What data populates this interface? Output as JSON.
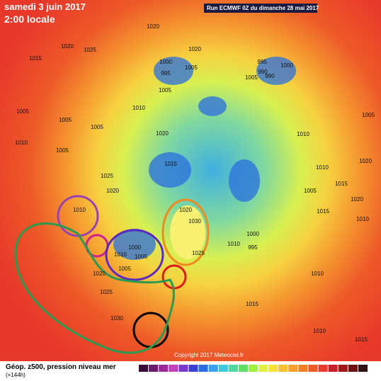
{
  "header": {
    "date": "samedi 3 juin 2017",
    "time": "2:00 locale",
    "run": "Run ECMWF 0Z du dimanche 28 mai 2017"
  },
  "footer": {
    "title": "Géop. z500, pression niveau mer",
    "lead": "(+144h)",
    "copyright": "Copyright 2017 Meteociel.fr"
  },
  "pressure_labels": [
    "1020",
    "1025",
    "1020",
    "1015",
    "1020",
    "1000",
    "995",
    "1005",
    "1005",
    "1010",
    "1005",
    "1005",
    "1005",
    "1020",
    "1015",
    "1010",
    "1005",
    "1025",
    "1020",
    "1010",
    "1020",
    "1030",
    "1000",
    "1010",
    "1005",
    "1005",
    "1020",
    "1025",
    "1030",
    "1025",
    "1000",
    "1010",
    "995",
    "1000",
    "995",
    "990",
    "990",
    "1005",
    "1010",
    "1005",
    "1010",
    "1005",
    "1015",
    "1020",
    "1015",
    "1010",
    "1015",
    "1010",
    "1015",
    "1010",
    "1020"
  ]
}
